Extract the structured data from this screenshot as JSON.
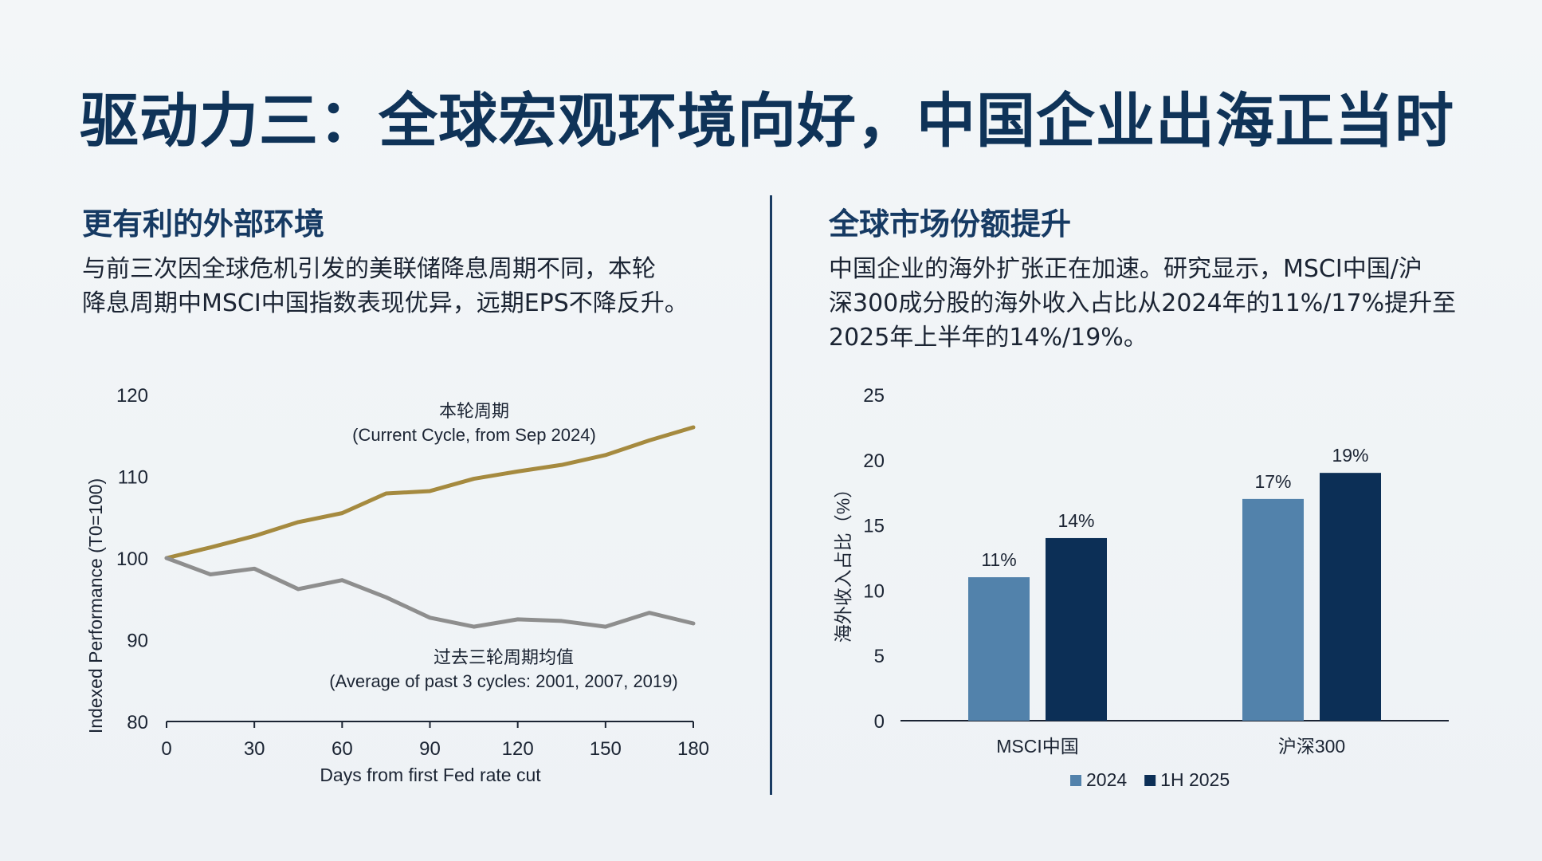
{
  "title": "驱动力三：全球宏观环境向好，中国企业出海正当时",
  "left": {
    "heading": "更有利的外部环境",
    "text_lines": [
      "与前三次因全球危机引发的美联储降息周期不同，本轮",
      "降息周期中MSCI中国指数表现优异，远期EPS不降反升。"
    ]
  },
  "right": {
    "heading": "全球市场份额提升",
    "text_lines": [
      "中国企业的海外扩张正在加速。研究显示，MSCI中国/沪",
      "深300成分股的海外收入占比从2024年的11%/17%提升至",
      "2025年上半年的14%/19%。"
    ]
  },
  "chart_data": [
    {
      "type": "line",
      "xlabel": "Days from first Fed rate cut",
      "ylabel": "Indexed Performance (T0=100)",
      "xlim": [
        0,
        180
      ],
      "ylim": [
        80,
        120
      ],
      "xticks": [
        0,
        30,
        60,
        90,
        120,
        150,
        180
      ],
      "yticks": [
        80,
        90,
        100,
        110,
        120
      ],
      "grid": false,
      "series": [
        {
          "name_lines": [
            "本轮周期",
            "(Current Cycle, from Sep 2024)"
          ],
          "color": "#a58a3f",
          "x": [
            0,
            15,
            30,
            45,
            60,
            75,
            90,
            105,
            120,
            135,
            150,
            165,
            180
          ],
          "y": [
            100,
            101.3,
            102.7,
            104.4,
            105.5,
            107.9,
            108.2,
            109.7,
            110.6,
            111.4,
            112.6,
            114.4,
            116
          ]
        },
        {
          "name_lines": [
            "过去三轮周期均值",
            "(Average of past 3 cycles: 2001, 2007, 2019)"
          ],
          "color": "#8e8e8e",
          "x": [
            0,
            15,
            30,
            45,
            60,
            75,
            90,
            105,
            120,
            135,
            150,
            165,
            180
          ],
          "y": [
            100,
            98,
            98.7,
            96.2,
            97.3,
            95.2,
            92.7,
            91.6,
            92.5,
            92.3,
            91.6,
            93.3,
            92
          ]
        }
      ]
    },
    {
      "type": "bar",
      "ylabel": "海外收入占比（%）",
      "ylim": [
        0,
        25
      ],
      "yticks": [
        0,
        5,
        10,
        15,
        20,
        25
      ],
      "grid": false,
      "categories": [
        "MSCI中国",
        "沪深300"
      ],
      "series": [
        {
          "name": "2024",
          "color": "#5282ab",
          "values": [
            11,
            17
          ],
          "labels": [
            "11%",
            "17%"
          ]
        },
        {
          "name": "1H 2025",
          "color": "#0c2f56",
          "values": [
            14,
            19
          ],
          "labels": [
            "14%",
            "19%"
          ]
        }
      ],
      "legend_position": "bottom"
    }
  ]
}
